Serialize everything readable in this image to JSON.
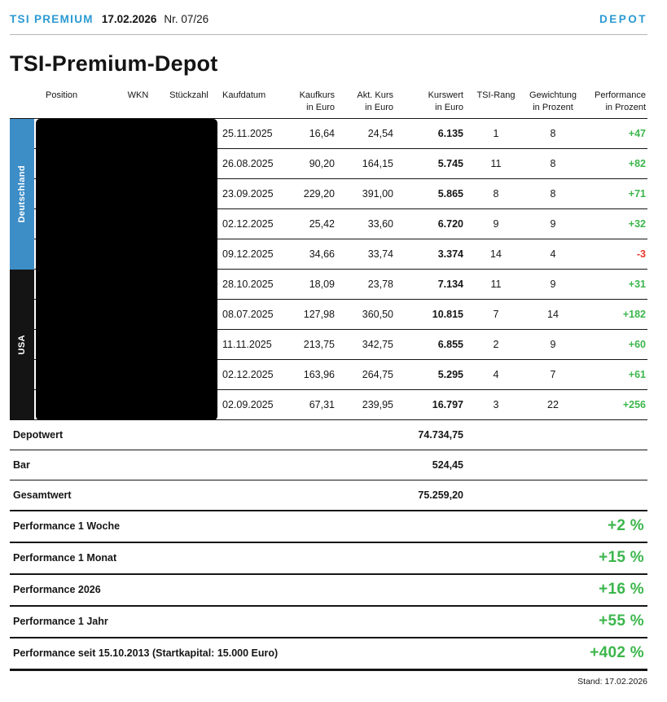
{
  "colors": {
    "brand_blue": "#2A99D2",
    "positive_green": "#3CB64C",
    "negative_red": "#E8382F",
    "strip_blue": "#3D8DC7",
    "strip_black": "#141414"
  },
  "masthead": {
    "brand": "TSI PREMIUM",
    "date": "17.02.2026",
    "issue": "Nr. 07/26",
    "section": "DEPOT"
  },
  "title": "TSI-Premium-Depot",
  "table": {
    "columns": {
      "position": "Position",
      "wkn": "WKN",
      "stueckzahl": "Stückzahl",
      "kaufdatum": "Kaufdatum",
      "kaufkurs": [
        "Kaufkurs",
        "in Euro"
      ],
      "akt_kurs": [
        "Akt. Kurs",
        "in Euro"
      ],
      "kurswert": [
        "Kurswert",
        "in Euro"
      ],
      "tsi_rang": "TSI-Rang",
      "gewichtung": [
        "Gewichtung",
        "in Prozent"
      ],
      "performance": [
        "Performance",
        "in Prozent"
      ]
    },
    "groups": [
      {
        "label": "Deutschland",
        "color": "#3D8DC7"
      },
      {
        "label": "USA",
        "color": "#141414"
      }
    ],
    "rows": [
      {
        "kaufdatum": "25.11.2025",
        "kaufkurs": "16,64",
        "akt_kurs": "24,54",
        "kurswert": "6.135",
        "tsi_rang": "1",
        "gewichtung": "8",
        "performance": "+47"
      },
      {
        "kaufdatum": "26.08.2025",
        "kaufkurs": "90,20",
        "akt_kurs": "164,15",
        "kurswert": "5.745",
        "tsi_rang": "11",
        "gewichtung": "8",
        "performance": "+82"
      },
      {
        "kaufdatum": "23.09.2025",
        "kaufkurs": "229,20",
        "akt_kurs": "391,00",
        "kurswert": "5.865",
        "tsi_rang": "8",
        "gewichtung": "8",
        "performance": "+71"
      },
      {
        "kaufdatum": "02.12.2025",
        "kaufkurs": "25,42",
        "akt_kurs": "33,60",
        "kurswert": "6.720",
        "tsi_rang": "9",
        "gewichtung": "9",
        "performance": "+32"
      },
      {
        "kaufdatum": "09.12.2025",
        "kaufkurs": "34,66",
        "akt_kurs": "33,74",
        "kurswert": "3.374",
        "tsi_rang": "14",
        "gewichtung": "4",
        "performance": "-3"
      },
      {
        "kaufdatum": "28.10.2025",
        "kaufkurs": "18,09",
        "akt_kurs": "23,78",
        "kurswert": "7.134",
        "tsi_rang": "11",
        "gewichtung": "9",
        "performance": "+31"
      },
      {
        "kaufdatum": "08.07.2025",
        "kaufkurs": "127,98",
        "akt_kurs": "360,50",
        "kurswert": "10.815",
        "tsi_rang": "7",
        "gewichtung": "14",
        "performance": "+182"
      },
      {
        "kaufdatum": "11.11.2025",
        "kaufkurs": "213,75",
        "akt_kurs": "342,75",
        "kurswert": "6.855",
        "tsi_rang": "2",
        "gewichtung": "9",
        "performance": "+60"
      },
      {
        "kaufdatum": "02.12.2025",
        "kaufkurs": "163,96",
        "akt_kurs": "264,75",
        "kurswert": "5.295",
        "tsi_rang": "4",
        "gewichtung": "7",
        "performance": "+61"
      },
      {
        "kaufdatum": "02.09.2025",
        "kaufkurs": "67,31",
        "akt_kurs": "239,95",
        "kurswert": "16.797",
        "tsi_rang": "3",
        "gewichtung": "22",
        "performance": "+256"
      }
    ]
  },
  "summary": [
    {
      "label": "Depotwert",
      "value": "74.734,75"
    },
    {
      "label": "Bar",
      "value": "524,45"
    },
    {
      "label": "Gesamtwert",
      "value": "75.259,20"
    }
  ],
  "performance": [
    {
      "label": "Performance 1 Woche",
      "value": "+2 %"
    },
    {
      "label": "Performance 1 Monat",
      "value": "+15 %"
    },
    {
      "label": "Performance 2026",
      "value": "+16 %"
    },
    {
      "label": "Performance 1 Jahr",
      "value": "+55 %"
    },
    {
      "label": "Performance seit 15.10.2013 (Startkapital: 15.000 Euro)",
      "value": "+402 %"
    }
  ],
  "footer": {
    "stand": "Stand: 17.02.2026"
  }
}
